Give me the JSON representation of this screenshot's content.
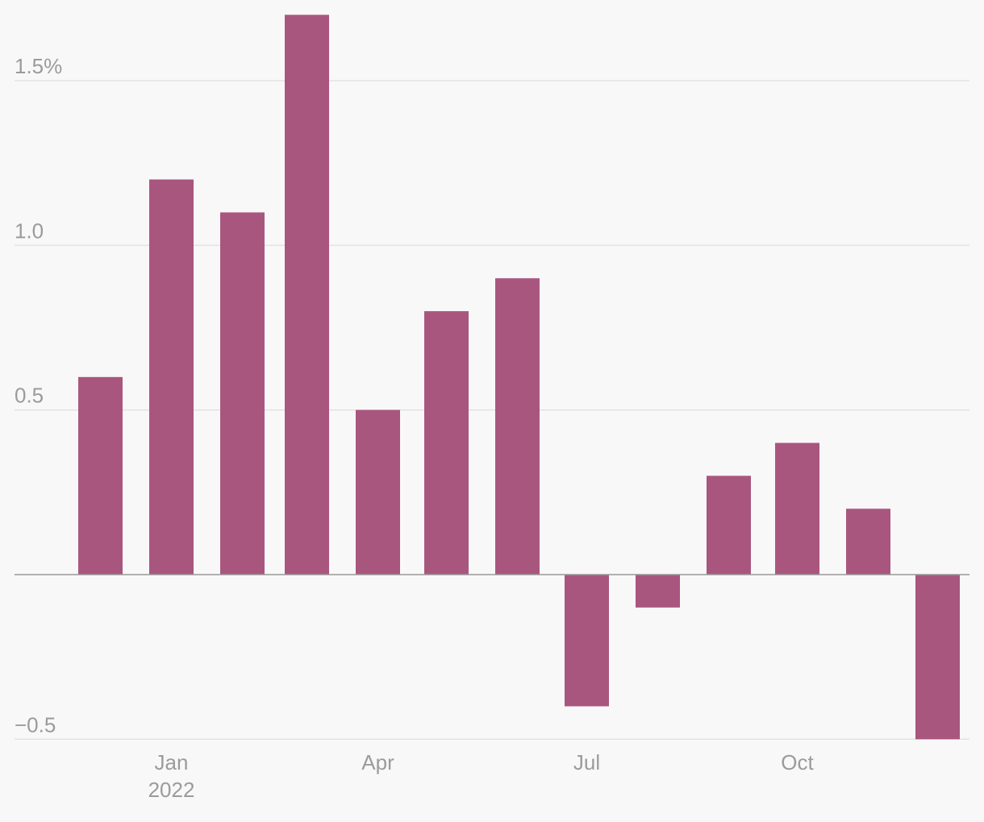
{
  "chart_data": {
    "type": "bar",
    "categories": [
      "2021-12",
      "2022-01",
      "2022-02",
      "2022-03",
      "2022-04",
      "2022-05",
      "2022-06",
      "2022-07",
      "2022-08",
      "2022-09",
      "2022-10",
      "2022-11",
      "2022-12"
    ],
    "values": [
      0.6,
      1.2,
      1.1,
      1.7,
      0.5,
      0.8,
      0.9,
      -0.4,
      -0.1,
      0.3,
      0.4,
      0.2,
      -0.5
    ],
    "ylim": [
      -0.5,
      1.7
    ],
    "y_ticks": [
      {
        "value": 1.5,
        "label": "1.5%"
      },
      {
        "value": 1.0,
        "label": "1.0"
      },
      {
        "value": 0.5,
        "label": "0.5"
      },
      {
        "value": -0.5,
        "label": "−0.5"
      }
    ],
    "x_ticks": [
      {
        "index": 1,
        "label": "Jan",
        "sublabel": "2022"
      },
      {
        "index": 4,
        "label": "Apr",
        "sublabel": ""
      },
      {
        "index": 7,
        "label": "Jul",
        "sublabel": ""
      },
      {
        "index": 10,
        "label": "Oct",
        "sublabel": ""
      }
    ],
    "bar_color": "#a9567f",
    "grid": true
  }
}
